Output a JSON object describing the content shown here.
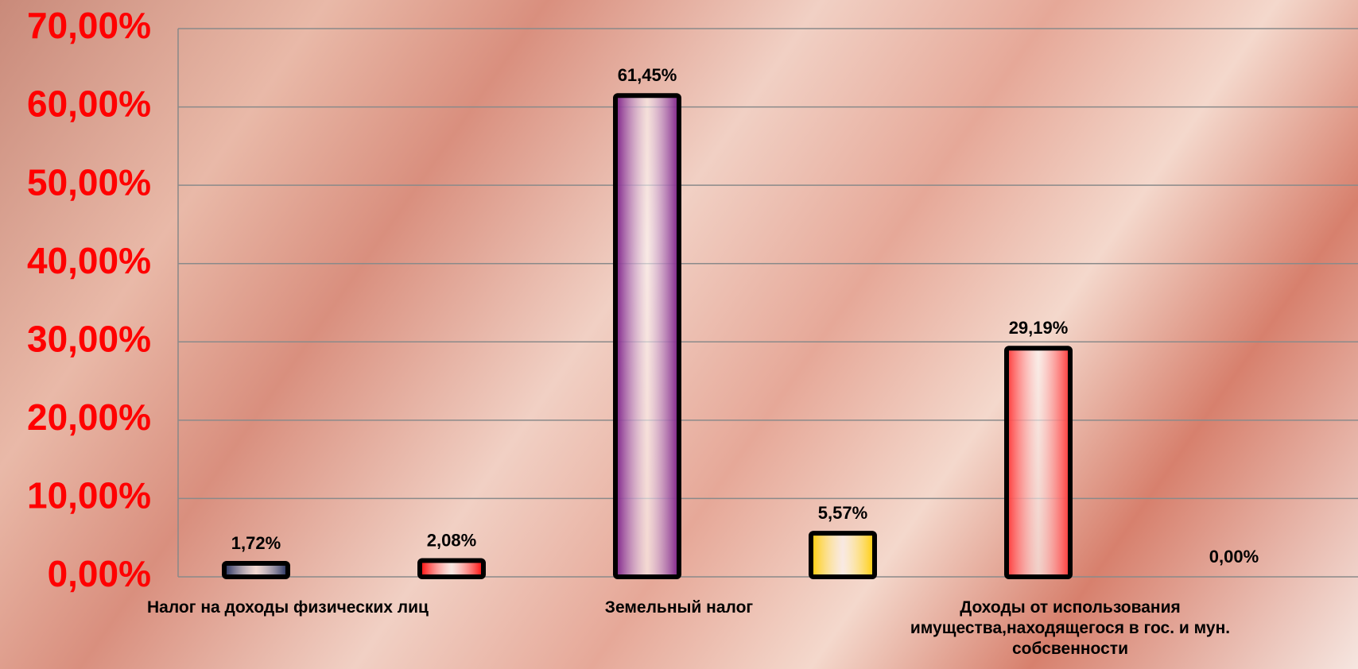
{
  "chart_data": {
    "type": "bar",
    "categories": [
      "Налог на доходы физических лиц",
      null,
      "Земельный налог",
      null,
      "Доходы от использования имущества,находящегося в гос. и мун. собсвенности",
      null
    ],
    "values": [
      1.72,
      2.08,
      61.45,
      5.57,
      29.19,
      0
    ],
    "value_labels": [
      "1,72%",
      "2,08%",
      "61,45%",
      "5,57%",
      "29,19%",
      "0,00%"
    ],
    "colors": [
      "#1e2a5a",
      "#ff0000",
      "#7a1a86",
      "#ffcc00",
      "#ff3333",
      "#888888"
    ],
    "ylim": [
      0,
      70
    ],
    "yticks": [
      {
        "value": 0,
        "label": "0,00%"
      },
      {
        "value": 10,
        "label": "10,00%"
      },
      {
        "value": 20,
        "label": "20,00%"
      },
      {
        "value": 30,
        "label": "30,00%"
      },
      {
        "value": 40,
        "label": "40,00%"
      },
      {
        "value": 50,
        "label": "50,00%"
      },
      {
        "value": 60,
        "label": "60,00%"
      },
      {
        "value": 70,
        "label": "70,00%"
      }
    ],
    "grid": true
  }
}
